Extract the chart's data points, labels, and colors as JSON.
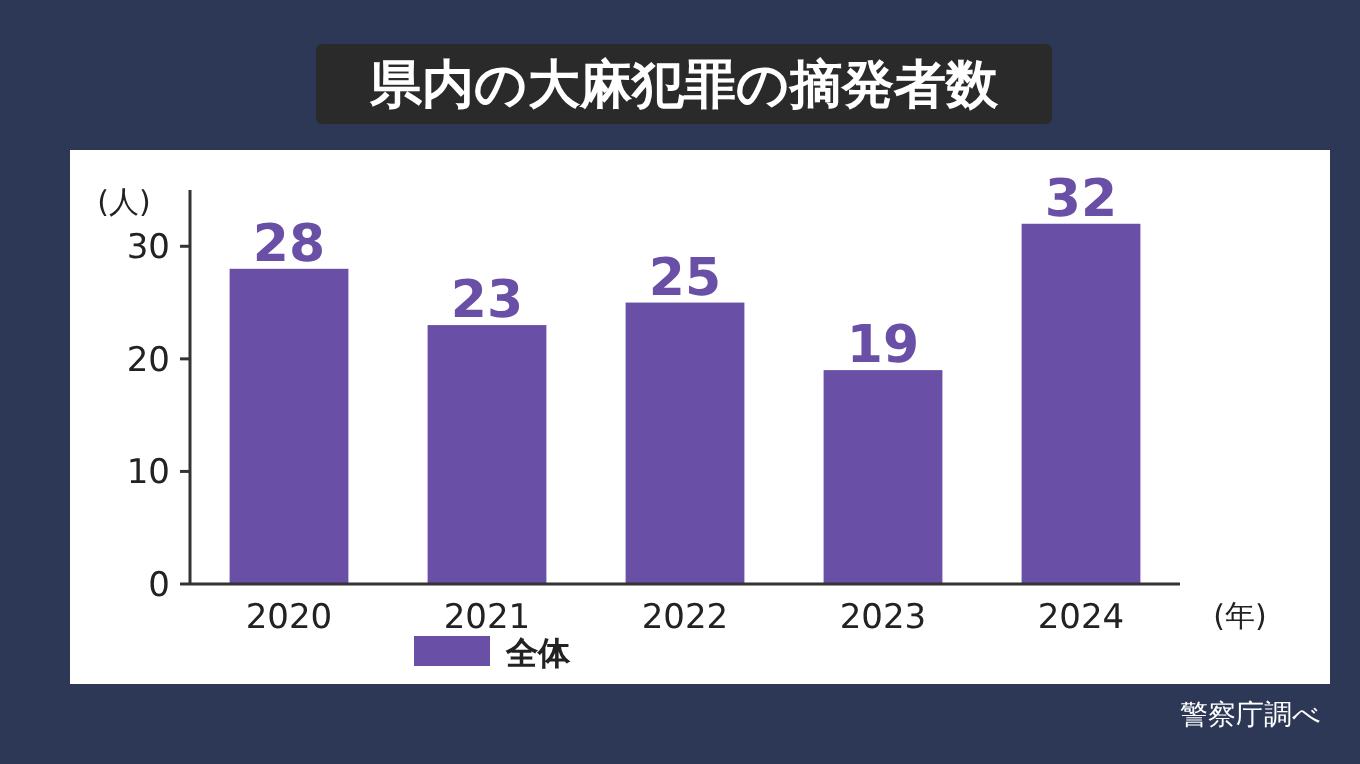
{
  "chart_data": {
    "type": "bar",
    "title": "県内の大麻犯罪の摘発者数",
    "ylabel": "(人)",
    "xlabel": "(年)",
    "categories": [
      "2020",
      "2021",
      "2022",
      "2023",
      "2024"
    ],
    "series": [
      {
        "name": "全体",
        "color": "#6a4fa6",
        "values": [
          28,
          23,
          25,
          19,
          32
        ]
      }
    ],
    "ylim": [
      0,
      35
    ],
    "yticks": [
      0,
      10,
      20,
      30
    ],
    "data_labels": true,
    "legend": "bottom left",
    "annotations": [
      "警察庁調べ"
    ]
  }
}
